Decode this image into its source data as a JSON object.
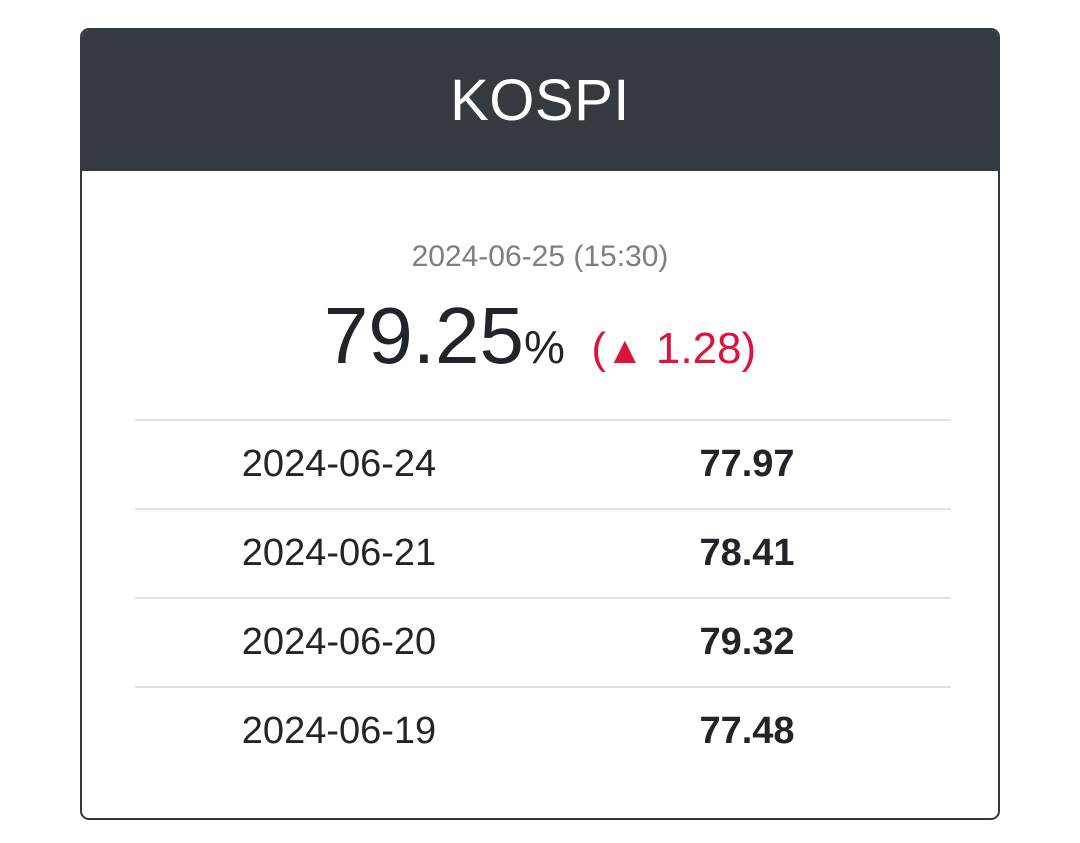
{
  "header": {
    "title": "KOSPI"
  },
  "current": {
    "timestamp": "2024-06-25 (15:30)",
    "value": "79.25",
    "unit": "%",
    "change_open": "(",
    "change_arrow": "▲",
    "change_value": "1.28",
    "change_close": ")"
  },
  "history": [
    {
      "date": "2024-06-24",
      "value": "77.97"
    },
    {
      "date": "2024-06-21",
      "value": "78.41"
    },
    {
      "date": "2024-06-20",
      "value": "79.32"
    },
    {
      "date": "2024-06-19",
      "value": "77.48"
    }
  ],
  "colors": {
    "header_bg": "#343a40",
    "up": "#dc143c",
    "text": "#212529",
    "muted": "#7a7f85"
  }
}
